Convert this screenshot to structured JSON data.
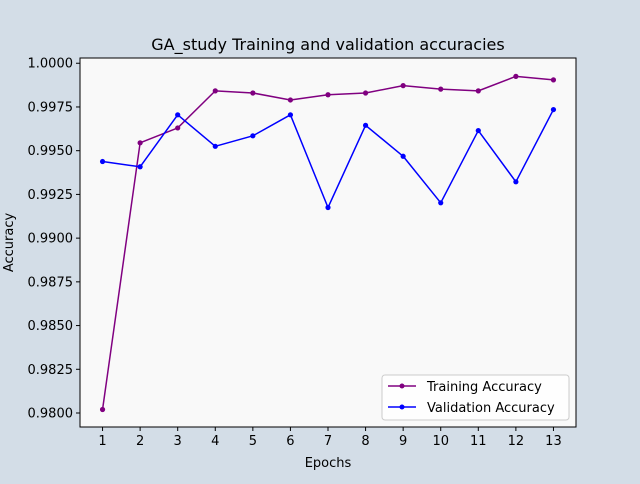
{
  "chart_data": {
    "type": "line",
    "title": "GA_study Training and validation accuracies",
    "xlabel": "Epochs",
    "ylabel": "Accuracy",
    "x": [
      1,
      2,
      3,
      4,
      5,
      6,
      7,
      8,
      9,
      10,
      11,
      12,
      13
    ],
    "xlim": [
      0.4,
      13.6
    ],
    "ylim": [
      0.9792,
      1.0003
    ],
    "yticks": [
      0.98,
      0.9825,
      0.985,
      0.9875,
      0.99,
      0.9925,
      0.995,
      0.9975,
      1.0
    ],
    "ytick_labels": [
      "0.9800",
      "0.9825",
      "0.9850",
      "0.9875",
      "0.9900",
      "0.9925",
      "0.9950",
      "0.9975",
      "1.0000"
    ],
    "xtick_labels": [
      "1",
      "2",
      "3",
      "4",
      "5",
      "6",
      "7",
      "8",
      "9",
      "10",
      "11",
      "12",
      "13"
    ],
    "grid": false,
    "legend_position": "lower-right",
    "series": [
      {
        "name": "Training Accuracy",
        "color": "#800080",
        "marker": "circle",
        "values": [
          0.9802,
          0.99545,
          0.9963,
          0.99842,
          0.9983,
          0.9979,
          0.9982,
          0.9983,
          0.99872,
          0.99852,
          0.99842,
          0.99925,
          0.99905
        ]
      },
      {
        "name": "Validation Accuracy",
        "color": "#0000ff",
        "marker": "circle",
        "values": [
          0.99438,
          0.99408,
          0.99705,
          0.99525,
          0.99585,
          0.99705,
          0.99175,
          0.99645,
          0.99468,
          0.99202,
          0.99615,
          0.99322,
          0.99735
        ]
      }
    ]
  }
}
